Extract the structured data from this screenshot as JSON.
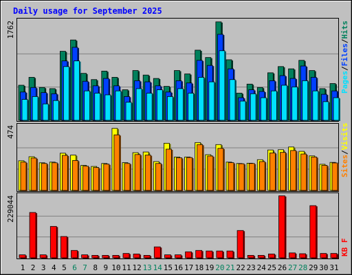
{
  "chart_data": {
    "type": "bar",
    "title": "Daily usage for September 2025",
    "categories": [
      "1",
      "2",
      "3",
      "4",
      "5",
      "6",
      "7",
      "8",
      "9",
      "10",
      "11",
      "12",
      "13",
      "14",
      "15",
      "16",
      "17",
      "18",
      "19",
      "20",
      "21",
      "22",
      "23",
      "24",
      "25",
      "26",
      "27",
      "28",
      "29",
      "30",
      "31"
    ],
    "weekend_days": [
      6,
      7,
      13,
      14,
      20,
      21,
      27,
      28
    ],
    "colors": {
      "background": "#c0c0c0",
      "title": "#0000ff",
      "hits": "#00805c",
      "files": "#0040ff",
      "pages": "#00e0ff",
      "visits": "#ffff00",
      "sites": "#ff8000",
      "kbytes": "#ff0000",
      "weekend_label": "#00805c",
      "weekday_label": "#000000"
    },
    "panels": [
      {
        "id": "top",
        "ymax_label": "1762",
        "ymax": 1762,
        "series": [
          {
            "name": "Hits",
            "color": "#00805c",
            "values": [
              620,
              760,
              580,
              560,
              1220,
              1420,
              830,
              720,
              870,
              760,
              540,
              880,
              800,
              740,
              600,
              880,
              820,
              1240,
              1110,
              1740,
              1070,
              480,
              640,
              580,
              840,
              950,
              910,
              1060,
              880,
              560,
              650
            ]
          },
          {
            "name": "Files",
            "color": "#0040ff",
            "values": [
              500,
              580,
              490,
              470,
              1050,
              1290,
              690,
              610,
              740,
              610,
              420,
              700,
              680,
              610,
              500,
              700,
              660,
              1060,
              970,
              1520,
              910,
              400,
              540,
              510,
              700,
              790,
              740,
              960,
              760,
              460,
              520
            ]
          },
          {
            "name": "Pages",
            "color": "#00e0ff",
            "values": [
              370,
              420,
              290,
              350,
              950,
              1050,
              520,
              480,
              450,
              520,
              320,
              560,
              480,
              540,
              420,
              560,
              480,
              760,
              680,
              1230,
              720,
              340,
              470,
              400,
              520,
              620,
              590,
              700,
              520,
              330,
              400
            ]
          }
        ]
      },
      {
        "id": "middle",
        "ymax_label": "474",
        "ymax": 474,
        "series": [
          {
            "name": "Visits",
            "color": "#ffff00",
            "values": [
              220,
              250,
              205,
              210,
              276,
              262,
              186,
              178,
              200,
              460,
              206,
              280,
              285,
              214,
              350,
              248,
              248,
              355,
              265,
              340,
              210,
              200,
              202,
              228,
              300,
              302,
              322,
              290,
              256,
              194,
              208
            ]
          },
          {
            "name": "Sites",
            "color": "#ff8000",
            "values": [
              210,
              240,
              200,
              205,
              260,
              222,
              180,
              170,
              195,
              412,
              200,
              266,
              262,
              200,
              306,
              242,
              244,
              340,
              255,
              312,
              206,
              198,
              200,
              214,
              278,
              282,
              296,
              270,
              248,
              186,
              204
            ]
          }
        ]
      },
      {
        "id": "bottom",
        "ymax_label": "229044",
        "ymax": 229044,
        "series": [
          {
            "name": "KBytes",
            "color": "#ff0000",
            "values": [
              11000,
              166000,
              11000,
              115000,
              78000,
              27000,
              11000,
              9000,
              9000,
              9000,
              16000,
              14000,
              9000,
              40000,
              11000,
              11000,
              22000,
              27000,
              25000,
              25000,
              25000,
              100000,
              9000,
              9000,
              14000,
              227000,
              18000,
              15000,
              191000,
              16000,
              16000
            ]
          }
        ]
      }
    ],
    "legend": {
      "top_pages": "Pages",
      "top_files": "Files",
      "top_hits": "Hits",
      "middle_sites": "Sites",
      "middle_visits": "Visits",
      "bottom_kbf": "KB F",
      "separator": "/"
    }
  }
}
